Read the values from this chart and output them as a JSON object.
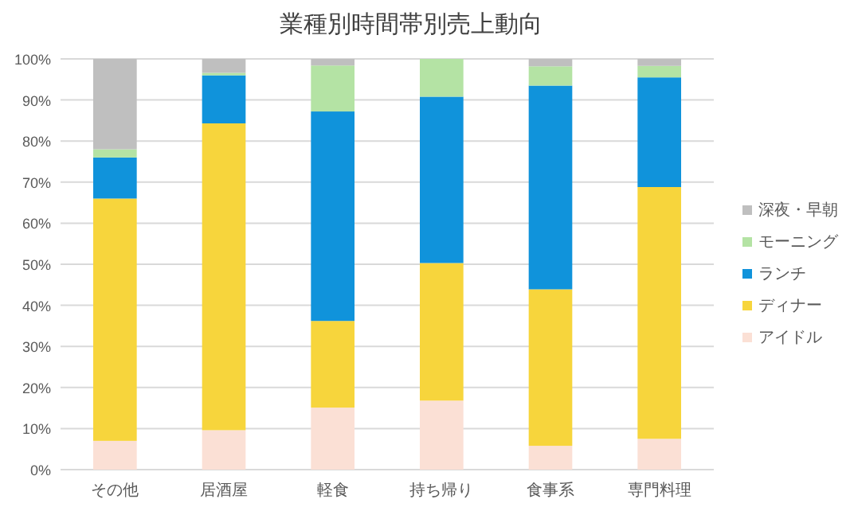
{
  "chart_data": {
    "type": "bar",
    "title": "業種別時間帯別売上動向",
    "stacked": true,
    "categories": [
      "その他",
      "居酒屋",
      "軽食",
      "持ち帰り",
      "食事系",
      "専門料理"
    ],
    "series": [
      {
        "name": "アイドル",
        "color": "#fbe0d5",
        "values": [
          7,
          9.6,
          15.1,
          16.8,
          5.8,
          7.5
        ]
      },
      {
        "name": "ディナー",
        "color": "#f7d53c",
        "values": [
          59,
          74.7,
          21.1,
          33.5,
          38.1,
          61.3
        ]
      },
      {
        "name": "ランチ",
        "color": "#1093db",
        "values": [
          10,
          11.7,
          51,
          40.5,
          49.6,
          26.7
        ]
      },
      {
        "name": "モーニング",
        "color": "#b4e3a4",
        "values": [
          2,
          0.6,
          11.2,
          9.2,
          4.7,
          2.8
        ]
      },
      {
        "name": "深夜・早朝",
        "color": "#bfbfbf",
        "values": [
          22,
          3.4,
          1.6,
          0,
          1.8,
          1.7
        ]
      }
    ],
    "ylim": [
      0,
      100
    ],
    "yticks": [
      {
        "value": 0,
        "label": "0%"
      },
      {
        "value": 10,
        "label": "10%"
      },
      {
        "value": 20,
        "label": "20%"
      },
      {
        "value": 30,
        "label": "30%"
      },
      {
        "value": 40,
        "label": "40%"
      },
      {
        "value": 50,
        "label": "50%"
      },
      {
        "value": 60,
        "label": "60%"
      },
      {
        "value": 70,
        "label": "70%"
      },
      {
        "value": 80,
        "label": "80%"
      },
      {
        "value": 90,
        "label": "90%"
      },
      {
        "value": 100,
        "label": "100%"
      }
    ],
    "grid": "y",
    "legend": "right"
  }
}
